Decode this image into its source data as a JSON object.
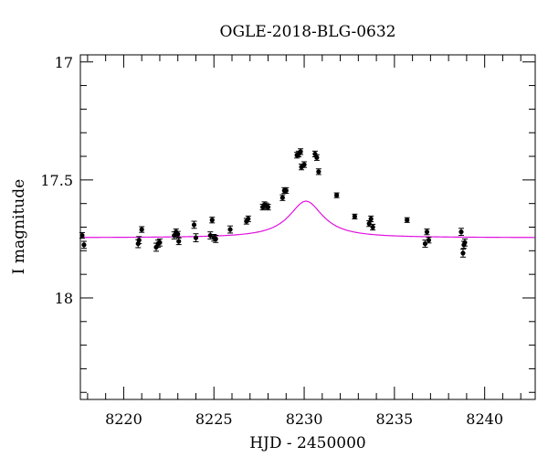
{
  "chart_data": {
    "type": "scatter",
    "title": "OGLE-2018-BLG-0632",
    "xlabel": "HJD - 2450000",
    "ylabel": "I magnitude",
    "xlim": [
      8217.6,
      8242.8
    ],
    "ylim": [
      18.43,
      16.97
    ],
    "y_inverted": true,
    "x_ticks": [
      8220,
      8225,
      8230,
      8235,
      8240
    ],
    "x_tick_labels": [
      "8220",
      "8225",
      "8230",
      "8235",
      "8240"
    ],
    "y_ticks": [
      17,
      17.5,
      18
    ],
    "y_tick_labels": [
      "17",
      "17.5",
      "18"
    ],
    "grid": false,
    "legend": "none",
    "colors": {
      "data": "#000000",
      "model": "#e010e0",
      "axes": "#000000"
    },
    "model_curve": {
      "baseline": 17.745,
      "peak_x": 8230.1,
      "peak_mag": 17.59,
      "width_days": 1.15
    },
    "series": [
      {
        "points": [
          {
            "x": 8217.7,
            "y": 17.735,
            "err": 0.012
          },
          {
            "x": 8217.8,
            "y": 17.775,
            "err": 0.015
          },
          {
            "x": 8220.8,
            "y": 17.77,
            "err": 0.017
          },
          {
            "x": 8220.85,
            "y": 17.755,
            "err": 0.015
          },
          {
            "x": 8221.0,
            "y": 17.71,
            "err": 0.012
          },
          {
            "x": 8221.8,
            "y": 17.785,
            "err": 0.017
          },
          {
            "x": 8221.9,
            "y": 17.77,
            "err": 0.015
          },
          {
            "x": 8222.0,
            "y": 17.765,
            "err": 0.015
          },
          {
            "x": 8222.8,
            "y": 17.735,
            "err": 0.015
          },
          {
            "x": 8222.9,
            "y": 17.72,
            "err": 0.012
          },
          {
            "x": 8223.0,
            "y": 17.73,
            "err": 0.012
          },
          {
            "x": 8223.05,
            "y": 17.76,
            "err": 0.014
          },
          {
            "x": 8223.9,
            "y": 17.69,
            "err": 0.015
          },
          {
            "x": 8224.0,
            "y": 17.745,
            "err": 0.017
          },
          {
            "x": 8224.8,
            "y": 17.735,
            "err": 0.015
          },
          {
            "x": 8224.9,
            "y": 17.67,
            "err": 0.012
          },
          {
            "x": 8225.0,
            "y": 17.745,
            "err": 0.014
          },
          {
            "x": 8225.1,
            "y": 17.75,
            "err": 0.015
          },
          {
            "x": 8225.9,
            "y": 17.71,
            "err": 0.015
          },
          {
            "x": 8226.8,
            "y": 17.675,
            "err": 0.012
          },
          {
            "x": 8226.9,
            "y": 17.665,
            "err": 0.012
          },
          {
            "x": 8227.7,
            "y": 17.615,
            "err": 0.012
          },
          {
            "x": 8227.8,
            "y": 17.605,
            "err": 0.012
          },
          {
            "x": 8227.9,
            "y": 17.61,
            "err": 0.012
          },
          {
            "x": 8228.0,
            "y": 17.615,
            "err": 0.012
          },
          {
            "x": 8228.8,
            "y": 17.575,
            "err": 0.012
          },
          {
            "x": 8228.9,
            "y": 17.545,
            "err": 0.012
          },
          {
            "x": 8229.0,
            "y": 17.545,
            "err": 0.012
          },
          {
            "x": 8229.6,
            "y": 17.395,
            "err": 0.012
          },
          {
            "x": 8229.7,
            "y": 17.39,
            "err": 0.012
          },
          {
            "x": 8229.8,
            "y": 17.38,
            "err": 0.012
          },
          {
            "x": 8229.85,
            "y": 17.445,
            "err": 0.012
          },
          {
            "x": 8230.0,
            "y": 17.435,
            "err": 0.012
          },
          {
            "x": 8230.6,
            "y": 17.39,
            "err": 0.012
          },
          {
            "x": 8230.7,
            "y": 17.405,
            "err": 0.012
          },
          {
            "x": 8230.8,
            "y": 17.465,
            "err": 0.012
          },
          {
            "x": 8231.8,
            "y": 17.565,
            "err": 0.01
          },
          {
            "x": 8232.8,
            "y": 17.655,
            "err": 0.01
          },
          {
            "x": 8233.6,
            "y": 17.685,
            "err": 0.012
          },
          {
            "x": 8233.7,
            "y": 17.665,
            "err": 0.012
          },
          {
            "x": 8233.8,
            "y": 17.7,
            "err": 0.012
          },
          {
            "x": 8235.7,
            "y": 17.67,
            "err": 0.01
          },
          {
            "x": 8236.7,
            "y": 17.77,
            "err": 0.015
          },
          {
            "x": 8236.8,
            "y": 17.72,
            "err": 0.012
          },
          {
            "x": 8236.9,
            "y": 17.755,
            "err": 0.012
          },
          {
            "x": 8238.7,
            "y": 17.72,
            "err": 0.015
          },
          {
            "x": 8238.8,
            "y": 17.81,
            "err": 0.017
          },
          {
            "x": 8238.85,
            "y": 17.775,
            "err": 0.015
          },
          {
            "x": 8238.9,
            "y": 17.765,
            "err": 0.015
          }
        ]
      }
    ]
  }
}
